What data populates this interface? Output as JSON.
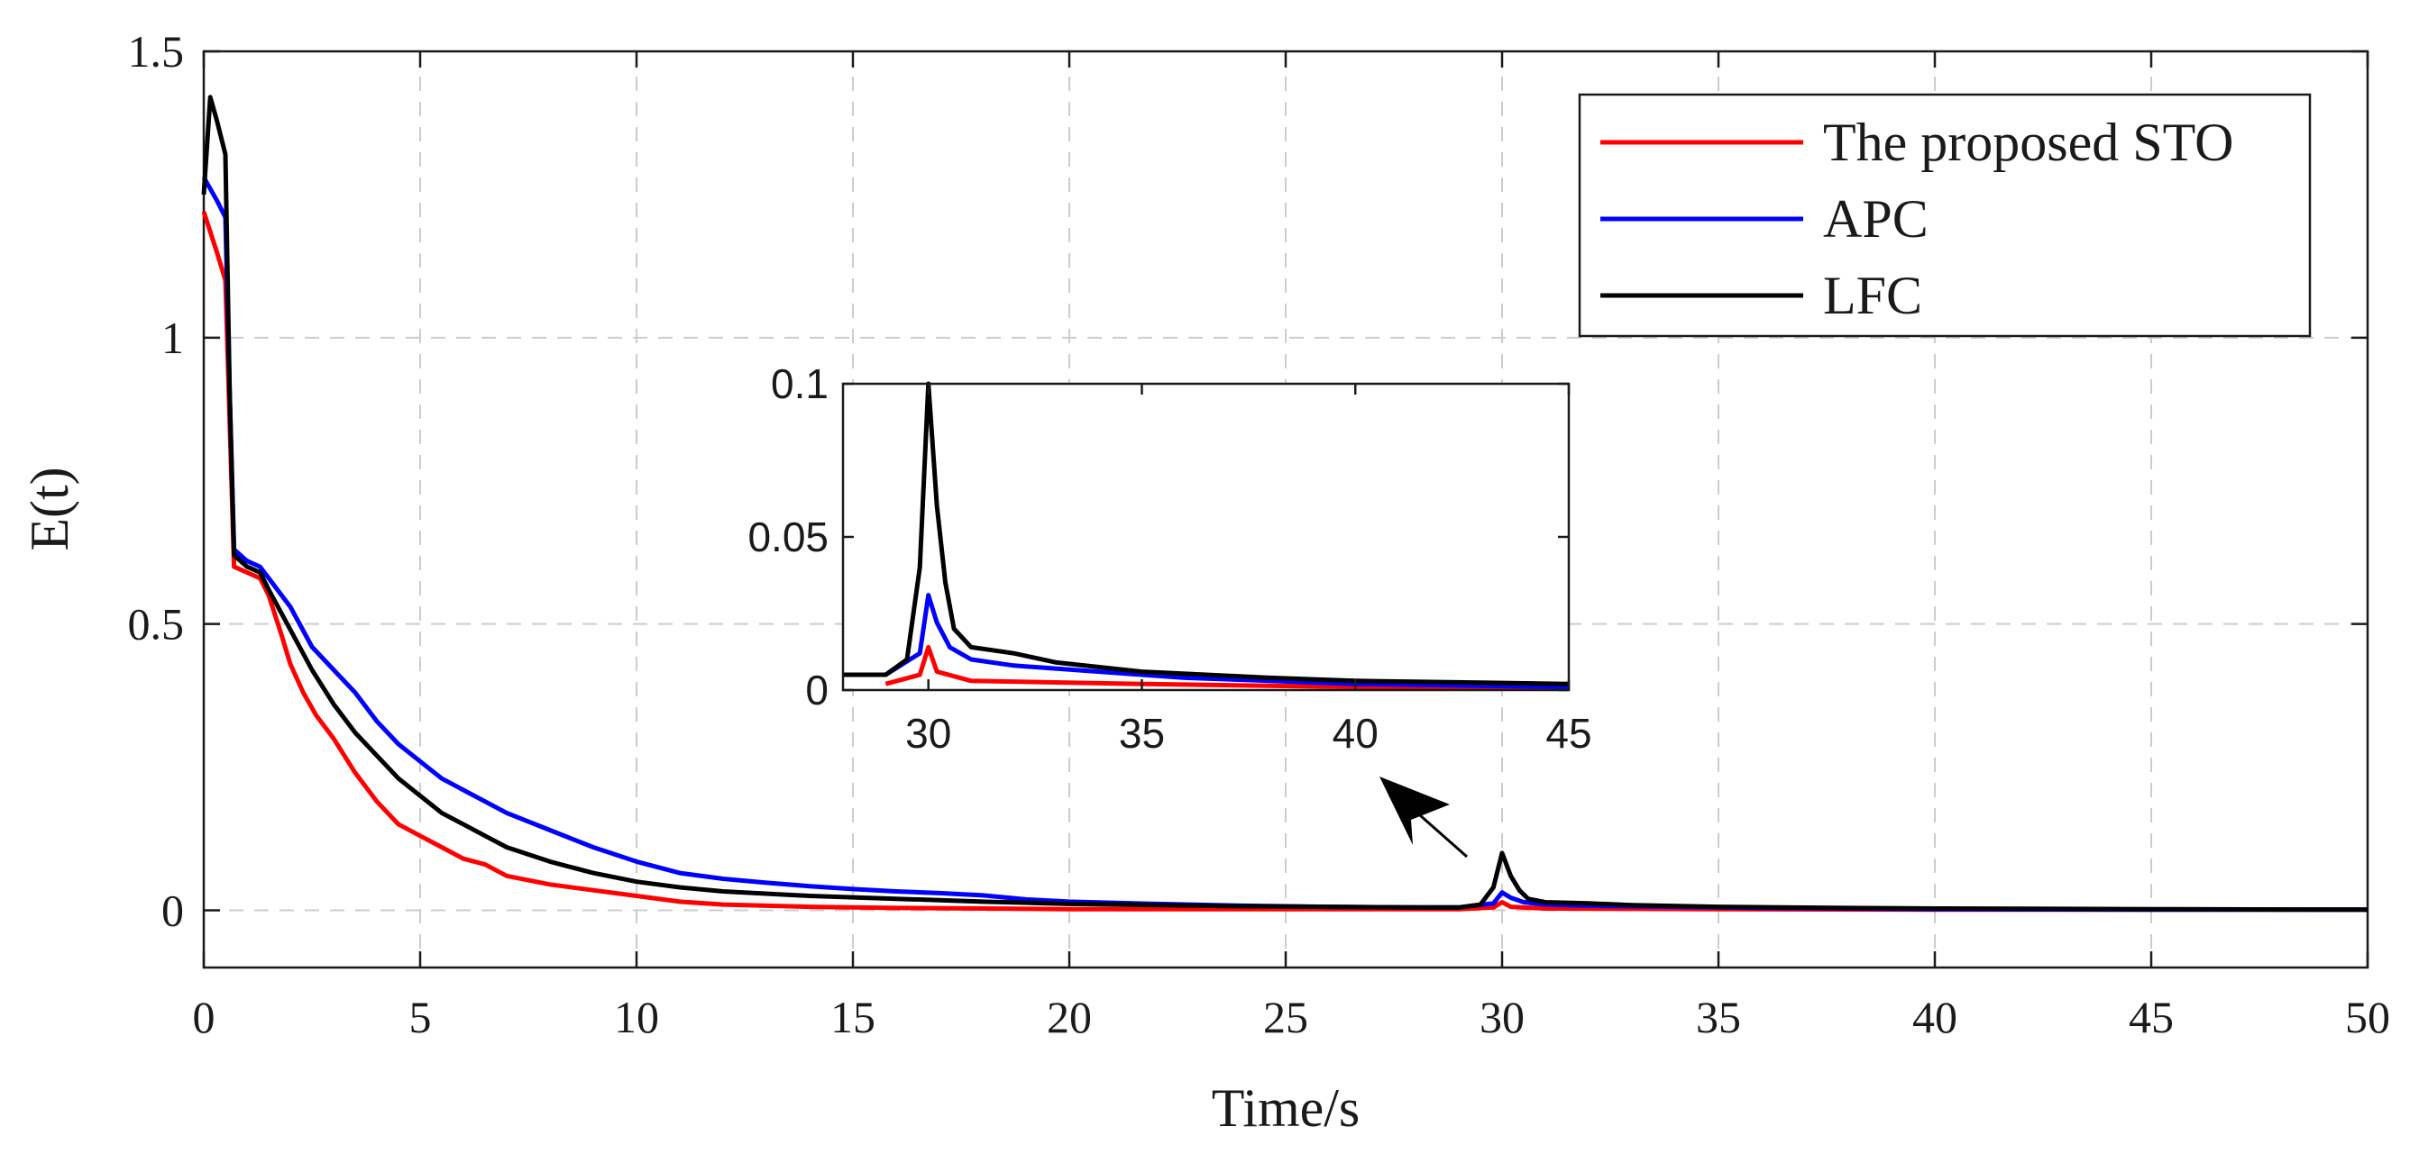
{
  "chart_data": {
    "type": "line",
    "xlabel": "Time/s",
    "ylabel": "E(t)",
    "xlim": [
      0,
      50
    ],
    "ylim": [
      -0.1,
      1.5
    ],
    "xticks": [
      0,
      5,
      10,
      15,
      20,
      25,
      30,
      35,
      40,
      45,
      50
    ],
    "xtick_labels": [
      "0",
      "5",
      "10",
      "15",
      "20",
      "25",
      "30",
      "35",
      "40",
      "45",
      "50"
    ],
    "yticks": [
      0,
      0.5,
      1,
      1.5
    ],
    "ytick_labels": [
      "0",
      "0.5",
      "1",
      "1.5"
    ],
    "grid": true,
    "legend_position": "top-right",
    "series": [
      {
        "name": "The proposed STO",
        "color": "#ff0000",
        "points": [
          [
            0,
            1.22
          ],
          [
            0.3,
            1.15
          ],
          [
            0.5,
            1.1
          ],
          [
            0.6,
            0.85
          ],
          [
            0.7,
            0.6
          ],
          [
            1.0,
            0.59
          ],
          [
            1.3,
            0.58
          ],
          [
            1.5,
            0.55
          ],
          [
            1.8,
            0.48
          ],
          [
            2.0,
            0.43
          ],
          [
            2.3,
            0.38
          ],
          [
            2.6,
            0.34
          ],
          [
            3.0,
            0.3
          ],
          [
            3.5,
            0.24
          ],
          [
            4.0,
            0.19
          ],
          [
            4.5,
            0.15
          ],
          [
            5.0,
            0.13
          ],
          [
            5.5,
            0.11
          ],
          [
            6.0,
            0.09
          ],
          [
            6.5,
            0.08
          ],
          [
            7.0,
            0.06
          ],
          [
            8.0,
            0.045
          ],
          [
            9.0,
            0.035
          ],
          [
            10.0,
            0.025
          ],
          [
            11.0,
            0.015
          ],
          [
            12.0,
            0.01
          ],
          [
            14.0,
            0.006
          ],
          [
            16.0,
            0.004
          ],
          [
            18.0,
            0.003
          ],
          [
            20.0,
            0.002
          ],
          [
            25.0,
            0.002
          ],
          [
            29.0,
            0.002
          ],
          [
            29.8,
            0.005
          ],
          [
            30.0,
            0.014
          ],
          [
            30.2,
            0.006
          ],
          [
            31.0,
            0.003
          ],
          [
            35.0,
            0.002
          ],
          [
            40.0,
            0.001
          ],
          [
            45.0,
            0.001
          ],
          [
            50.0,
            0.001
          ]
        ]
      },
      {
        "name": "APC",
        "color": "#0000ff",
        "points": [
          [
            0,
            1.28
          ],
          [
            0.3,
            1.24
          ],
          [
            0.5,
            1.21
          ],
          [
            0.6,
            0.9
          ],
          [
            0.7,
            0.63
          ],
          [
            1.0,
            0.61
          ],
          [
            1.3,
            0.6
          ],
          [
            1.5,
            0.58
          ],
          [
            2.0,
            0.53
          ],
          [
            2.5,
            0.46
          ],
          [
            3.0,
            0.42
          ],
          [
            3.5,
            0.38
          ],
          [
            4.0,
            0.33
          ],
          [
            4.5,
            0.29
          ],
          [
            5.0,
            0.26
          ],
          [
            5.5,
            0.23
          ],
          [
            6.0,
            0.21
          ],
          [
            6.5,
            0.19
          ],
          [
            7.0,
            0.17
          ],
          [
            8.0,
            0.14
          ],
          [
            9.0,
            0.11
          ],
          [
            10.0,
            0.085
          ],
          [
            11.0,
            0.065
          ],
          [
            12.0,
            0.055
          ],
          [
            13.0,
            0.048
          ],
          [
            14.0,
            0.042
          ],
          [
            15.0,
            0.037
          ],
          [
            16.0,
            0.033
          ],
          [
            17.0,
            0.03
          ],
          [
            18.0,
            0.026
          ],
          [
            19.0,
            0.019
          ],
          [
            20.0,
            0.015
          ],
          [
            22.0,
            0.011
          ],
          [
            24.0,
            0.008
          ],
          [
            26.0,
            0.006
          ],
          [
            28.0,
            0.005
          ],
          [
            29.0,
            0.005
          ],
          [
            29.8,
            0.012
          ],
          [
            30.0,
            0.031
          ],
          [
            30.2,
            0.022
          ],
          [
            30.5,
            0.014
          ],
          [
            31.0,
            0.01
          ],
          [
            32.0,
            0.008
          ],
          [
            34.0,
            0.006
          ],
          [
            36.0,
            0.004
          ],
          [
            40.0,
            0.002
          ],
          [
            45.0,
            0.001
          ],
          [
            50.0,
            0.001
          ]
        ]
      },
      {
        "name": "LFC",
        "color": "#000000",
        "points": [
          [
            0,
            1.25
          ],
          [
            0.15,
            1.42
          ],
          [
            0.3,
            1.38
          ],
          [
            0.5,
            1.32
          ],
          [
            0.6,
            0.9
          ],
          [
            0.7,
            0.62
          ],
          [
            1.0,
            0.6
          ],
          [
            1.3,
            0.59
          ],
          [
            1.5,
            0.56
          ],
          [
            2.0,
            0.49
          ],
          [
            2.5,
            0.42
          ],
          [
            3.0,
            0.36
          ],
          [
            3.5,
            0.31
          ],
          [
            4.0,
            0.27
          ],
          [
            4.5,
            0.23
          ],
          [
            5.0,
            0.2
          ],
          [
            5.5,
            0.17
          ],
          [
            6.0,
            0.15
          ],
          [
            6.5,
            0.13
          ],
          [
            7.0,
            0.11
          ],
          [
            8.0,
            0.085
          ],
          [
            9.0,
            0.065
          ],
          [
            10.0,
            0.05
          ],
          [
            11.0,
            0.04
          ],
          [
            12.0,
            0.033
          ],
          [
            14.0,
            0.025
          ],
          [
            16.0,
            0.02
          ],
          [
            18.0,
            0.015
          ],
          [
            20.0,
            0.011
          ],
          [
            24.0,
            0.007
          ],
          [
            28.0,
            0.005
          ],
          [
            29.0,
            0.005
          ],
          [
            29.5,
            0.01
          ],
          [
            29.8,
            0.04
          ],
          [
            30.0,
            0.1
          ],
          [
            30.2,
            0.06
          ],
          [
            30.4,
            0.035
          ],
          [
            30.6,
            0.02
          ],
          [
            31.0,
            0.014
          ],
          [
            32.0,
            0.012
          ],
          [
            33.0,
            0.009
          ],
          [
            35.0,
            0.006
          ],
          [
            38.0,
            0.004
          ],
          [
            40.0,
            0.003
          ],
          [
            45.0,
            0.002
          ],
          [
            50.0,
            0.001
          ]
        ]
      }
    ],
    "inset": {
      "xlim": [
        28,
        45
      ],
      "ylim": [
        0,
        0.1
      ],
      "xticks": [
        30,
        35,
        40,
        45
      ],
      "xtick_labels": [
        "30",
        "35",
        "40",
        "45"
      ],
      "yticks": [
        0,
        0.05,
        0.1
      ],
      "ytick_labels": [
        "0",
        "0.05",
        "0.1"
      ],
      "annotation": "arrow pointing from the spike near t = 30 s to the inset"
    }
  }
}
